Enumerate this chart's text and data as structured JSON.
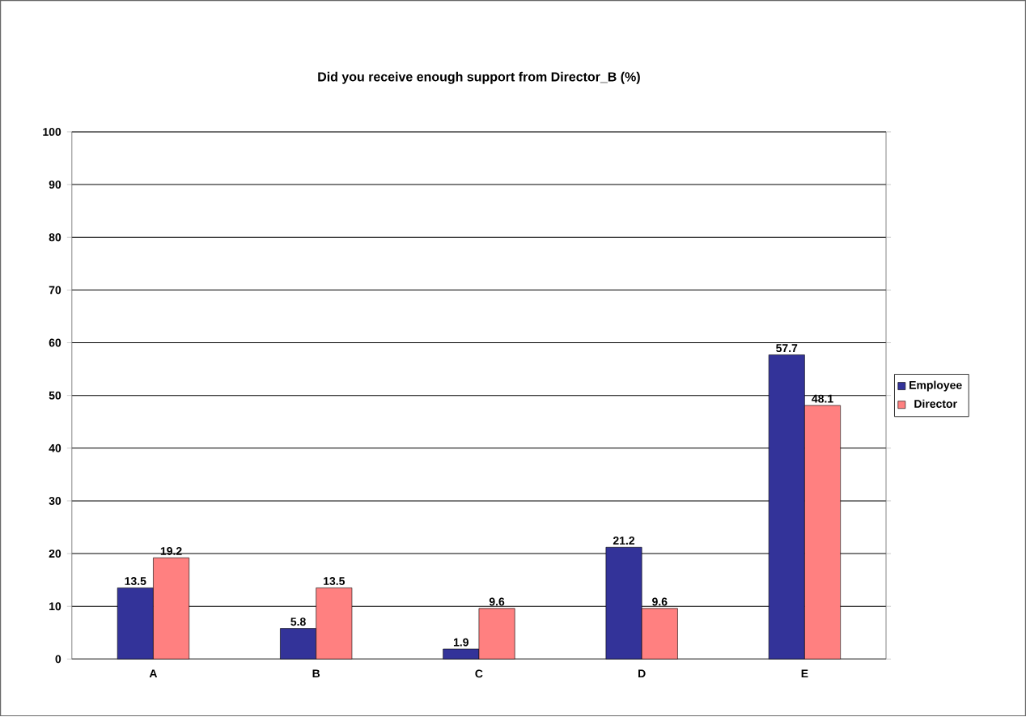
{
  "chart_data": {
    "type": "bar",
    "title": "Did you receive enough support from Director_B  (%)",
    "categories": [
      "A",
      "B",
      "C",
      "D",
      "E"
    ],
    "series": [
      {
        "name": "Employee",
        "color": "#333399",
        "values": [
          13.5,
          5.8,
          1.9,
          21.2,
          57.7
        ]
      },
      {
        "name": "Director",
        "color": "#ff8080",
        "values": [
          19.2,
          13.5,
          9.6,
          9.6,
          48.1
        ]
      }
    ],
    "ylim": [
      0,
      100
    ],
    "yticks": [
      0,
      10,
      20,
      30,
      40,
      50,
      60,
      70,
      80,
      90,
      100
    ],
    "grid": "y",
    "legend": "right",
    "data_labels": true
  }
}
